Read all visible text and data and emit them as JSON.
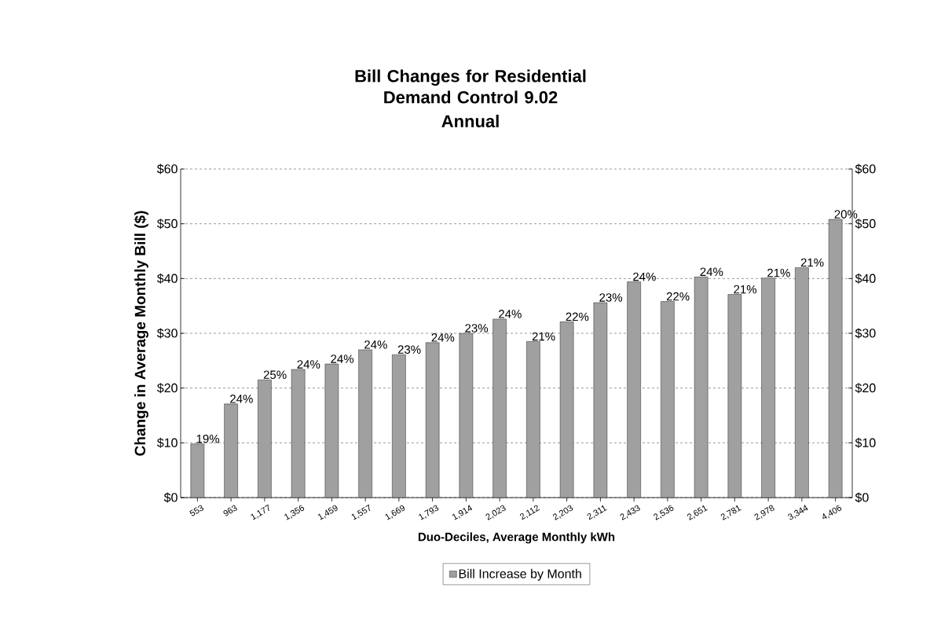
{
  "chart_data": {
    "type": "bar",
    "title": "Bill Changes for Residential Demand Control 9.02",
    "subtitle": "Annual",
    "xlabel": "Duo-Deciles, Average Monthly kWh",
    "ylabel": "Change in Average Monthly Bill  ($)",
    "categories": [
      "553",
      "963",
      "1,177",
      "1,356",
      "1,459",
      "1,557",
      "1,669",
      "1,793",
      "1,914",
      "2,023",
      "2,112",
      "2,203",
      "2,311",
      "2,433",
      "2,536",
      "2,651",
      "2,781",
      "2,978",
      "3,344",
      "4,406"
    ],
    "series": [
      {
        "name": "Bill Increase by Month",
        "color": "#a0a0a0",
        "values": [
          9.8,
          17.1,
          21.5,
          23.4,
          24.4,
          27.0,
          26.1,
          28.3,
          30.0,
          32.6,
          28.5,
          32.1,
          35.6,
          39.4,
          35.8,
          40.3,
          37.1,
          40.1,
          42.0,
          50.8
        ]
      }
    ],
    "annotations": [
      {
        "text": "19%",
        "x": "553",
        "y": 9.8
      },
      {
        "text": "24%",
        "x": "963",
        "y": 17.1
      },
      {
        "text": "25%",
        "x": "1,177",
        "y": 21.5
      },
      {
        "text": "24%",
        "x": "1,356",
        "y": 23.4
      },
      {
        "text": "24%",
        "x": "1,459",
        "y": 24.4
      },
      {
        "text": "24%",
        "x": "1,557",
        "y": 27.0
      },
      {
        "text": "23%",
        "x": "1,669",
        "y": 26.1
      },
      {
        "text": "24%",
        "x": "1,793",
        "y": 28.3
      },
      {
        "text": "23%",
        "x": "1,914",
        "y": 30.0
      },
      {
        "text": "24%",
        "x": "2,023",
        "y": 32.6
      },
      {
        "text": "21%",
        "x": "2,112",
        "y": 28.5
      },
      {
        "text": "22%",
        "x": "2,203",
        "y": 32.1
      },
      {
        "text": "23%",
        "x": "2,311",
        "y": 35.6
      },
      {
        "text": "24%",
        "x": "2,433",
        "y": 39.4
      },
      {
        "text": "22%",
        "x": "2,536",
        "y": 35.8
      },
      {
        "text": "24%",
        "x": "2,651",
        "y": 40.3
      },
      {
        "text": "21%",
        "x": "2,781",
        "y": 37.1
      },
      {
        "text": "21%",
        "x": "2,978",
        "y": 40.1
      },
      {
        "text": "21%",
        "x": "3,344",
        "y": 42.0
      },
      {
        "text": "20%",
        "x": "4,406",
        "y": 50.8
      }
    ],
    "ylim": [
      0,
      60
    ],
    "yticks": [
      {
        "value": 0,
        "label": "$0"
      },
      {
        "value": 10,
        "label": "$10"
      },
      {
        "value": 20,
        "label": "$20"
      },
      {
        "value": 30,
        "label": "$30"
      },
      {
        "value": 40,
        "label": "$40"
      },
      {
        "value": 50,
        "label": "$50"
      },
      {
        "value": 60,
        "label": "$60"
      }
    ],
    "y2lim": [
      0,
      60
    ],
    "y2ticks": [
      {
        "value": 0,
        "label": "$0"
      },
      {
        "value": 10,
        "label": "$10"
      },
      {
        "value": 20,
        "label": "$20"
      },
      {
        "value": 30,
        "label": "$30"
      },
      {
        "value": 40,
        "label": "$40"
      },
      {
        "value": 50,
        "label": "$50"
      },
      {
        "value": 60,
        "label": "$60"
      }
    ],
    "grid": "y",
    "legend": "bottom"
  }
}
